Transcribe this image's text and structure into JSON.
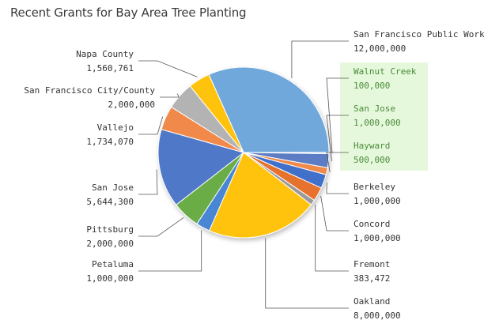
{
  "chart_data": {
    "type": "pie",
    "title": "Recent Grants for Bay Area Tree Planting",
    "slices": [
      {
        "label": "San Francisco Public Works",
        "value_text": "12,000,000",
        "value": 12000000,
        "color": "#6fa8dc",
        "highlight": false
      },
      {
        "label": "Walnut Creek",
        "value_text": "100,000",
        "value": 100000,
        "color": "#bcd0e8",
        "highlight": true
      },
      {
        "label": "San Jose",
        "value_text": "1,000,000",
        "value": 1000000,
        "color": "#5b7dc4",
        "highlight": true
      },
      {
        "label": "Hayward",
        "value_text": "500,000",
        "value": 500000,
        "color": "#f0894a",
        "highlight": true
      },
      {
        "label": "Berkeley",
        "value_text": "1,000,000",
        "value": 1000000,
        "color": "#3f6fc9",
        "highlight": false
      },
      {
        "label": "Concord",
        "value_text": "1,000,000",
        "value": 1000000,
        "color": "#e6722e",
        "highlight": false
      },
      {
        "label": "Fremont",
        "value_text": "383,472",
        "value": 383472,
        "color": "#9a9a9a",
        "highlight": false
      },
      {
        "label": "Oakland",
        "value_text": "8,000,000",
        "value": 8000000,
        "color": "#ffc20e",
        "highlight": false
      },
      {
        "label": "Petaluma",
        "value_text": "1,000,000",
        "value": 1000000,
        "color": "#4a86d4",
        "highlight": false
      },
      {
        "label": "Pittsburg",
        "value_text": "2,000,000",
        "value": 2000000,
        "color": "#6aac44",
        "highlight": false
      },
      {
        "label": "San Jose",
        "value_text": "5,644,300",
        "value": 5644300,
        "color": "#4f78c8",
        "highlight": false
      },
      {
        "label": "Vallejo",
        "value_text": "1,734,070",
        "value": 1734070,
        "color": "#f0894a",
        "highlight": false
      },
      {
        "label": "San Francisco City/County",
        "value_text": "2,000,000",
        "value": 2000000,
        "color": "#b3b3b3",
        "highlight": false
      },
      {
        "label": "Napa County",
        "value_text": "1,560,761",
        "value": 1560761,
        "color": "#ffc20e",
        "highlight": false
      }
    ],
    "start_angle_deg": 336,
    "direction": "clockwise",
    "highlight_color": "#e6f8dc"
  }
}
